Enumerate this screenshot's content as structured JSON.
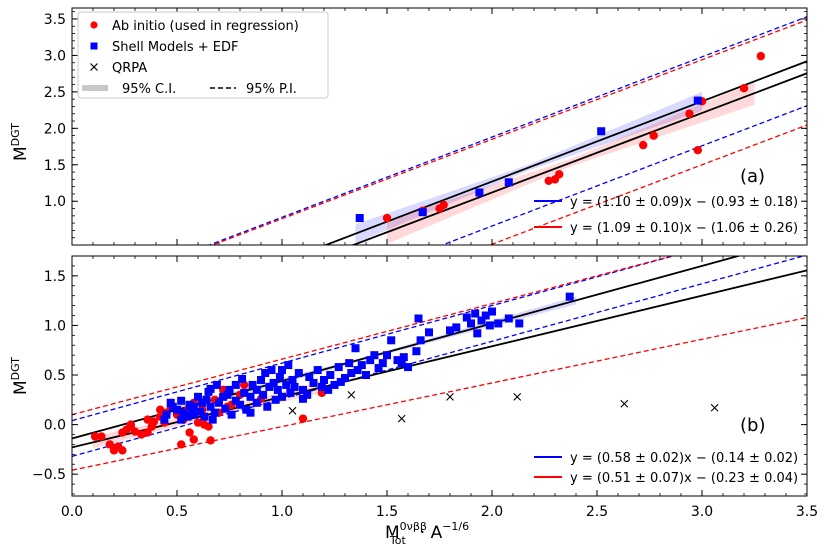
{
  "chart_data": [
    {
      "panel_label": "(a)",
      "type": "scatter",
      "ylabel": "M",
      "ylabel_sup": "DGT",
      "xlim": [
        0.0,
        3.5
      ],
      "ylim": [
        0.4,
        3.65
      ],
      "xticks": [
        0.0,
        0.5,
        1.0,
        1.5,
        2.0,
        2.5,
        3.0,
        3.5
      ],
      "yticks": [
        1.0,
        1.5,
        2.0,
        2.5,
        3.0,
        3.5
      ],
      "ytick_labels": [
        "1.0",
        "1.5",
        "2.0",
        "2.5",
        "3.0",
        "3.5"
      ],
      "legend": {
        "position": "top-left",
        "entries": [
          {
            "label": "Ab initio (used in regression)",
            "marker": "circle",
            "color": "#ff0000"
          },
          {
            "label": "Shell Models + EDF",
            "marker": "square",
            "color": "#0000ff"
          },
          {
            "label": "QRPA",
            "marker": "x",
            "color": "#000000"
          }
        ],
        "ci_label": "95% C.I.",
        "pi_label": "95% P.I."
      },
      "fits": [
        {
          "color": "#0000ff",
          "label": "y = (1.10 ± 0.09)x − (0.93 ± 0.18)",
          "slope": 1.1,
          "intercept": -0.93,
          "x_range": [
            1.35,
            3.0
          ],
          "ci_half": [
            0.13,
            0.04,
            0.13
          ],
          "pi_upper_offset": 0.61,
          "pi_lower_offset": 0.61
        },
        {
          "color": "#ff0000",
          "label": "y = (1.09 ± 0.10)x − (1.06 ± 0.26)",
          "slope": 1.09,
          "intercept": -1.06,
          "x_range": [
            1.5,
            3.25
          ],
          "ci_half": [
            0.16,
            0.05,
            0.16
          ],
          "pi_upper_offset": 0.73,
          "pi_lower_offset": 0.71
        }
      ],
      "series": [
        {
          "name": "Ab initio",
          "marker": "circle",
          "color": "#ff0000",
          "points": [
            [
              1.5,
              0.77
            ],
            [
              1.67,
              0.87
            ],
            [
              1.77,
              0.95
            ],
            [
              2.27,
              1.28
            ],
            [
              2.3,
              1.3
            ],
            [
              2.32,
              1.37
            ],
            [
              2.72,
              1.77
            ],
            [
              2.77,
              1.9
            ],
            [
              2.94,
              2.2
            ],
            [
              3.0,
              2.37
            ],
            [
              3.2,
              2.55
            ],
            [
              3.28,
              2.99
            ],
            [
              2.98,
              1.7
            ],
            [
              1.75,
              0.9
            ]
          ]
        },
        {
          "name": "Shell Models + EDF",
          "marker": "square",
          "color": "#0000ff",
          "points": [
            [
              1.37,
              0.77
            ],
            [
              1.67,
              0.85
            ],
            [
              1.94,
              1.12
            ],
            [
              2.08,
              1.26
            ],
            [
              2.52,
              1.96
            ],
            [
              2.98,
              2.38
            ]
          ]
        },
        {
          "name": "QRPA",
          "marker": "x",
          "color": "#000000",
          "points": []
        }
      ]
    },
    {
      "panel_label": "(b)",
      "type": "scatter",
      "xlabel": "M",
      "xlabel_sub": "Tot",
      "xlabel_sup": "0νββ",
      "xlabel_rest": "· A",
      "xlabel_exp": "−1/6",
      "ylabel": "M",
      "ylabel_sup": "DGT",
      "xlim": [
        0.0,
        3.5
      ],
      "ylim": [
        -0.72,
        1.7
      ],
      "xticks": [
        0.0,
        0.5,
        1.0,
        1.5,
        2.0,
        2.5,
        3.0,
        3.5
      ],
      "xtick_labels": [
        "0.0",
        "0.5",
        "1.0",
        "1.5",
        "2.0",
        "2.5",
        "3.0",
        "3.5"
      ],
      "yticks": [
        -0.5,
        0.0,
        0.5,
        1.0,
        1.5
      ],
      "ytick_labels": [
        "−0.5",
        "0.0",
        "0.5",
        "1.0",
        "1.5"
      ],
      "fits": [
        {
          "color": "#0000ff",
          "label": "y = (0.58 ± 0.02)x − (0.14 ± 0.02)",
          "slope": 0.58,
          "intercept": -0.14,
          "x_range": [
            0.45,
            2.4
          ],
          "ci_half": [
            0.04,
            0.015,
            0.04
          ],
          "pi_upper_offset": 0.18,
          "pi_lower_offset": 0.18
        },
        {
          "color": "#ff0000",
          "label": "y = (0.51 ± 0.07)x − (0.23 ± 0.04)",
          "slope": 0.51,
          "intercept": -0.23,
          "x_range": [
            0.1,
            1.2
          ],
          "ci_half": [
            0.06,
            0.03,
            0.06
          ],
          "pi_upper_offset": 0.33,
          "pi_lower_offset": 0.23,
          "pi_upper_slope": 0.56,
          "pi_lower_slope": 0.44
        }
      ],
      "series": [
        {
          "name": "Ab initio",
          "marker": "circle",
          "color": "#ff0000",
          "points": [
            [
              0.11,
              -0.12
            ],
            [
              0.14,
              -0.12
            ],
            [
              0.18,
              -0.2
            ],
            [
              0.2,
              -0.26
            ],
            [
              0.22,
              -0.22
            ],
            [
              0.24,
              -0.26
            ],
            [
              0.24,
              -0.08
            ],
            [
              0.26,
              -0.05
            ],
            [
              0.28,
              -0.02
            ],
            [
              0.28,
              0.0
            ],
            [
              0.3,
              -0.07
            ],
            [
              0.33,
              -0.1
            ],
            [
              0.36,
              -0.08
            ],
            [
              0.36,
              0.05
            ],
            [
              0.38,
              -0.02
            ],
            [
              0.39,
              0.03
            ],
            [
              0.42,
              0.08
            ],
            [
              0.42,
              0.15
            ],
            [
              0.44,
              0.02
            ],
            [
              0.45,
              0.12
            ],
            [
              0.47,
              0.18
            ],
            [
              0.5,
              0.1
            ],
            [
              0.52,
              -0.2
            ],
            [
              0.53,
              0.05
            ],
            [
              0.55,
              0.15
            ],
            [
              0.56,
              -0.08
            ],
            [
              0.58,
              0.22
            ],
            [
              0.58,
              -0.15
            ],
            [
              0.6,
              0.02
            ],
            [
              0.62,
              0.15
            ],
            [
              0.63,
              0.0
            ],
            [
              0.65,
              -0.02
            ],
            [
              0.66,
              -0.16
            ],
            [
              0.68,
              0.25
            ],
            [
              0.7,
              0.12
            ],
            [
              0.72,
              0.35
            ],
            [
              0.74,
              0.18
            ],
            [
              0.76,
              0.2
            ],
            [
              0.8,
              0.3
            ],
            [
              0.82,
              0.4
            ],
            [
              0.9,
              0.26
            ],
            [
              1.1,
              0.06
            ],
            [
              1.19,
              0.32
            ]
          ]
        },
        {
          "name": "Shell Models + EDF",
          "marker": "square",
          "color": "#0000ff",
          "points": [
            [
              0.45,
              0.1
            ],
            [
              0.47,
              0.22
            ],
            [
              0.48,
              0.18
            ],
            [
              0.5,
              0.15
            ],
            [
              0.52,
              0.05
            ],
            [
              0.52,
              0.24
            ],
            [
              0.53,
              0.12
            ],
            [
              0.55,
              0.08
            ],
            [
              0.56,
              0.2
            ],
            [
              0.57,
              0.15
            ],
            [
              0.58,
              0.18
            ],
            [
              0.58,
              0.1
            ],
            [
              0.6,
              0.28
            ],
            [
              0.61,
              0.13
            ],
            [
              0.62,
              0.22
            ],
            [
              0.63,
              0.08
            ],
            [
              0.64,
              0.25
            ],
            [
              0.65,
              0.33
            ],
            [
              0.66,
              0.18
            ],
            [
              0.67,
              0.05
            ],
            [
              0.68,
              0.12
            ],
            [
              0.69,
              0.4
            ],
            [
              0.7,
              0.22
            ],
            [
              0.72,
              0.28
            ],
            [
              0.73,
              0.16
            ],
            [
              0.74,
              0.3
            ],
            [
              0.75,
              0.35
            ],
            [
              0.76,
              0.1
            ],
            [
              0.78,
              0.24
            ],
            [
              0.8,
              0.2
            ],
            [
              0.81,
              0.46
            ],
            [
              0.82,
              0.32
            ],
            [
              0.83,
              0.15
            ],
            [
              0.85,
              0.28
            ],
            [
              0.86,
              0.4
            ],
            [
              0.88,
              0.35
            ],
            [
              0.88,
              0.22
            ],
            [
              0.9,
              0.45
            ],
            [
              0.91,
              0.3
            ],
            [
              0.92,
              0.52
            ],
            [
              0.93,
              0.18
            ],
            [
              0.94,
              0.38
            ],
            [
              0.95,
              0.55
            ],
            [
              0.96,
              0.42
            ],
            [
              0.97,
              0.25
            ],
            [
              0.98,
              0.35
            ],
            [
              0.99,
              0.48
            ],
            [
              1.0,
              0.28
            ],
            [
              1.02,
              0.4
            ],
            [
              1.03,
              0.6
            ],
            [
              1.04,
              0.32
            ],
            [
              1.05,
              0.45
            ],
            [
              1.06,
              0.38
            ],
            [
              1.08,
              0.52
            ],
            [
              1.1,
              0.35
            ],
            [
              1.12,
              0.3
            ],
            [
              1.13,
              0.48
            ],
            [
              1.15,
              0.42
            ],
            [
              1.17,
              0.55
            ],
            [
              1.19,
              0.38
            ],
            [
              1.2,
              0.45
            ],
            [
              1.22,
              0.35
            ],
            [
              1.23,
              0.5
            ],
            [
              1.25,
              0.4
            ],
            [
              1.27,
              0.58
            ],
            [
              1.28,
              0.43
            ],
            [
              1.3,
              0.47
            ],
            [
              1.32,
              0.62
            ],
            [
              1.33,
              0.52
            ],
            [
              1.35,
              0.77
            ],
            [
              1.36,
              0.55
            ],
            [
              1.38,
              0.6
            ],
            [
              1.4,
              0.5
            ],
            [
              1.42,
              0.65
            ],
            [
              1.44,
              0.7
            ],
            [
              1.46,
              0.57
            ],
            [
              1.48,
              0.62
            ],
            [
              1.5,
              0.7
            ],
            [
              1.52,
              0.85
            ],
            [
              1.55,
              0.65
            ],
            [
              1.57,
              0.62
            ],
            [
              1.58,
              0.68
            ],
            [
              1.6,
              0.58
            ],
            [
              1.64,
              0.74
            ],
            [
              1.65,
              1.07
            ],
            [
              1.66,
              0.85
            ],
            [
              1.7,
              0.93
            ],
            [
              1.8,
              0.95
            ],
            [
              1.83,
              0.98
            ],
            [
              1.88,
              1.08
            ],
            [
              1.9,
              1.02
            ],
            [
              1.92,
              1.12
            ],
            [
              1.93,
              0.92
            ],
            [
              1.95,
              1.05
            ],
            [
              1.97,
              1.1
            ],
            [
              1.99,
              1.0
            ],
            [
              2.0,
              1.14
            ],
            [
              2.03,
              1.02
            ],
            [
              2.08,
              1.07
            ],
            [
              2.13,
              1.02
            ],
            [
              2.37,
              1.29
            ],
            [
              0.44,
              0.05
            ],
            [
              0.66,
              0.36
            ],
            [
              0.78,
              0.4
            ],
            [
              0.85,
              0.12
            ],
            [
              1.0,
              0.55
            ],
            [
              1.1,
              0.26
            ]
          ]
        },
        {
          "name": "QRPA",
          "marker": "x",
          "color": "#000000",
          "points": [
            [
              1.05,
              0.14
            ],
            [
              1.33,
              0.3
            ],
            [
              1.57,
              0.06
            ],
            [
              1.8,
              0.28
            ],
            [
              2.12,
              0.28
            ],
            [
              2.63,
              0.21
            ],
            [
              3.06,
              0.17
            ]
          ]
        }
      ]
    }
  ]
}
